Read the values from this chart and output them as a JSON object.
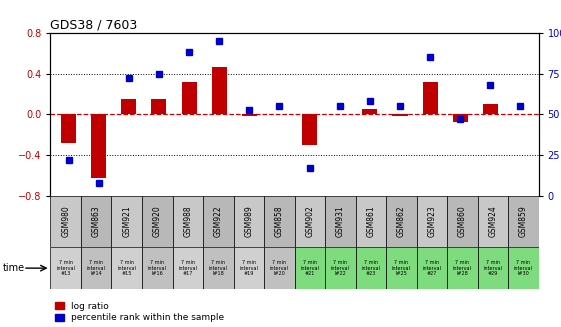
{
  "title": "GDS38 / 7603",
  "categories": [
    "GSM980",
    "GSM863",
    "GSM921",
    "GSM920",
    "GSM988",
    "GSM922",
    "GSM989",
    "GSM858",
    "GSM902",
    "GSM931",
    "GSM861",
    "GSM862",
    "GSM923",
    "GSM860",
    "GSM924",
    "GSM859"
  ],
  "time_labels": [
    "7 min\ninterval\n#13",
    "7 min\ninterval\nl#14",
    "7 min\ninterval\n#15",
    "7 min\ninterval\nl#16",
    "7 min\ninterval\n#17",
    "7 min\ninterval\nl#18",
    "7 min\ninterval\n#19",
    "7 min\ninterval\nl#20",
    "7 min\ninterval\n#21",
    "7 min\ninterval\nl#22",
    "7 min\ninterval\n#23",
    "7 min\ninterval\nl#25",
    "7 min\ninterval\n#27",
    "7 min\ninterval\nl#28",
    "7 min\ninterval\n#29",
    "7 min\ninterval\nl#30"
  ],
  "log_ratio": [
    -0.28,
    -0.62,
    0.15,
    0.15,
    0.32,
    0.46,
    -0.02,
    0.0,
    -0.3,
    0.0,
    0.05,
    -0.02,
    0.32,
    -0.07,
    0.1,
    0.0
  ],
  "percentile": [
    22,
    8,
    72,
    75,
    88,
    95,
    53,
    55,
    17,
    55,
    58,
    55,
    85,
    47,
    68,
    55
  ],
  "bar_color": "#c00000",
  "dot_color": "#0000cc",
  "ylim_left": [
    -0.8,
    0.8
  ],
  "ylim_right": [
    0,
    100
  ],
  "yticks_left": [
    -0.8,
    -0.4,
    0.0,
    0.4,
    0.8
  ],
  "yticks_right": [
    0,
    25,
    50,
    75,
    100
  ],
  "ytick_labels_right": [
    "0",
    "25",
    "50",
    "75",
    "100%"
  ],
  "hline_color": "#cc0000",
  "dotted_color": "#000000",
  "legend_log_label": "log ratio",
  "legend_pct_label": "percentile rank within the sample",
  "time_label": "time",
  "header_bg_even": "#c8c8c8",
  "header_bg_odd": "#b8b8b8",
  "time_row_colors": [
    "#d0d0d0",
    "#c0c0c0",
    "#d0d0d0",
    "#c0c0c0",
    "#d0d0d0",
    "#c0c0c0",
    "#d0d0d0",
    "#c0c0c0",
    "#7edb7e",
    "#7edb7e",
    "#7edb7e",
    "#7edb7e",
    "#7edb7e",
    "#7edb7e",
    "#7edb7e",
    "#7edb7e"
  ]
}
